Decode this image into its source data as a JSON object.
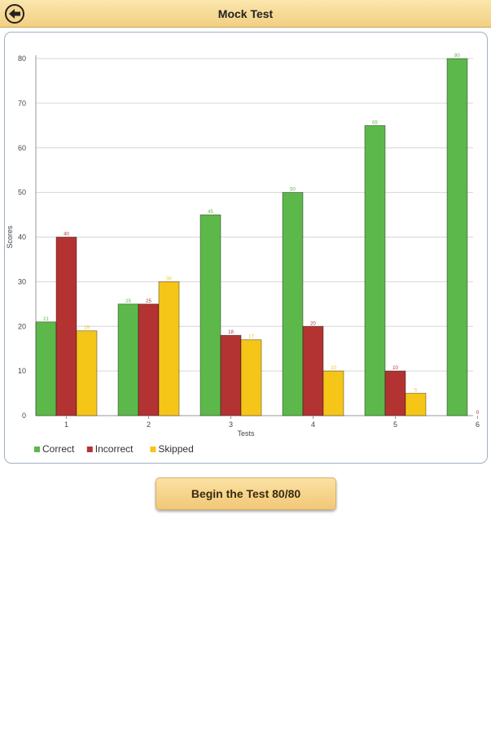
{
  "header": {
    "title": "Mock Test",
    "back_icon": "arrow-left-icon"
  },
  "chart_data": {
    "type": "bar",
    "xlabel": "Tests",
    "ylabel": "Scores",
    "ylim": [
      0,
      80
    ],
    "yticks": [
      0,
      10,
      20,
      30,
      40,
      50,
      60,
      70,
      80
    ],
    "grid": true,
    "legend_position": "bottom-left",
    "categories": [
      "1",
      "2",
      "3",
      "4",
      "5",
      "6"
    ],
    "series": [
      {
        "name": "Correct",
        "color": "#5cb84a",
        "values": [
          21,
          25,
          45,
          50,
          65,
          80
        ]
      },
      {
        "name": "Incorrect",
        "color": "#b33333",
        "values": [
          40,
          25,
          18,
          20,
          10,
          0
        ]
      },
      {
        "name": "Skipped",
        "color": "#f5c518",
        "values": [
          19,
          30,
          17,
          10,
          5,
          0
        ]
      }
    ]
  },
  "actions": {
    "begin_label": "Begin the Test 80/80"
  }
}
